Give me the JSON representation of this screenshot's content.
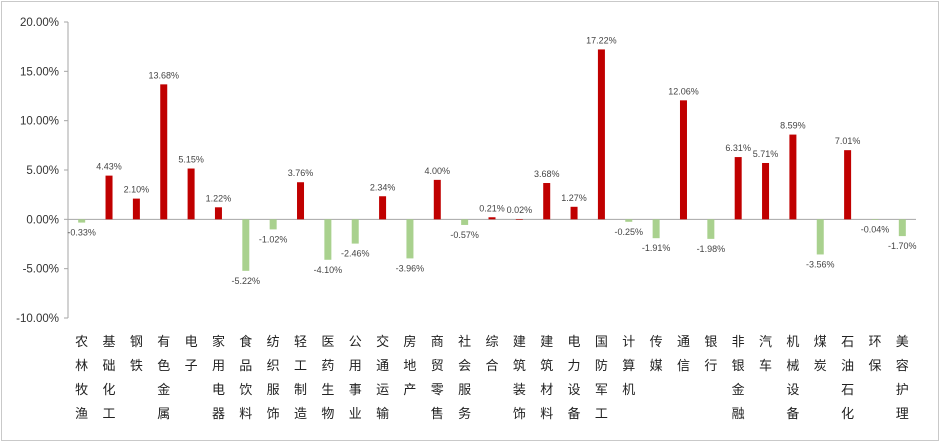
{
  "chart_data": {
    "type": "bar",
    "title": "",
    "xlabel": "",
    "ylabel": "",
    "ylim": [
      -10,
      20
    ],
    "y_ticks": [
      "20.00%",
      "15.00%",
      "10.00%",
      "5.00%",
      "0.00%",
      "-5.00%",
      "-10.00%"
    ],
    "y_tick_values": [
      20,
      15,
      10,
      5,
      0,
      -5,
      -10
    ],
    "grid": false,
    "legend": "none",
    "colors": {
      "positive": "#c00000",
      "negative": "#a9d18e",
      "axis": "#a6a6a6"
    },
    "categories": [
      "农林牧渔",
      "基础化工",
      "钢铁",
      "有色金属",
      "电子",
      "家用电器",
      "食品饮料",
      "纺织服饰",
      "轻工制造",
      "医药生物",
      "公用事业",
      "交通运输",
      "房地产",
      "商贸零售",
      "社会服务",
      "综合",
      "建筑装饰",
      "建筑材料",
      "电力设备",
      "国防军工",
      "计算机",
      "传媒",
      "通信",
      "银行",
      "非银金融",
      "汽车",
      "机械设备",
      "煤炭",
      "石油石化",
      "环保",
      "美容护理"
    ],
    "values": [
      -0.33,
      4.43,
      2.1,
      13.68,
      5.15,
      1.22,
      -5.22,
      -1.02,
      3.76,
      -4.1,
      -2.46,
      2.34,
      -3.96,
      4.0,
      -0.57,
      0.21,
      0.02,
      3.68,
      1.27,
      17.22,
      -0.25,
      -1.91,
      12.06,
      -1.98,
      6.31,
      5.71,
      8.59,
      -3.56,
      7.01,
      -0.04,
      -1.7
    ],
    "data_labels": [
      "-0.33%",
      "4.43%",
      "2.10%",
      "13.68%",
      "5.15%",
      "1.22%",
      "-5.22%",
      "-1.02%",
      "3.76%",
      "-4.10%",
      "-2.46%",
      "2.34%",
      "-3.96%",
      "4.00%",
      "-0.57%",
      "0.21%",
      "0.02%",
      "3.68%",
      "1.27%",
      "17.22%",
      "-0.25%",
      "-1.91%",
      "12.06%",
      "-1.98%",
      "6.31%",
      "5.71%",
      "8.59%",
      "-3.56%",
      "7.01%",
      "-0.04%",
      "-1.70%"
    ]
  }
}
